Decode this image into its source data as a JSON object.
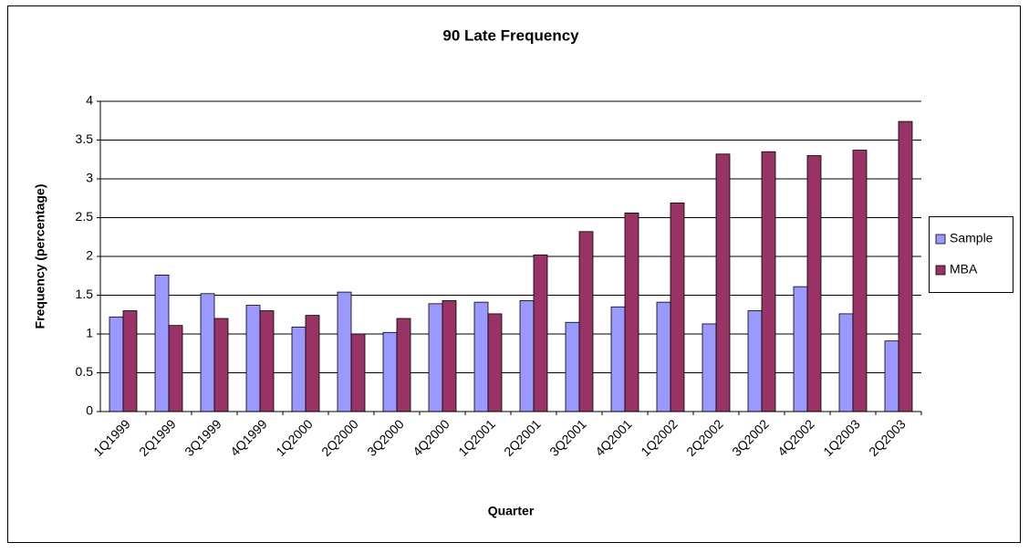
{
  "chart_data": {
    "type": "bar",
    "title": "90 Late Frequency",
    "x_label": "Quarter",
    "y_label": "Frequency (percentage)",
    "categories": [
      "1Q1999",
      "2Q1999",
      "3Q1999",
      "4Q1999",
      "1Q2000",
      "2Q2000",
      "3Q2000",
      "4Q2000",
      "1Q2001",
      "2Q2001",
      "3Q2001",
      "4Q2001",
      "1Q2002",
      "2Q2002",
      "3Q2002",
      "4Q2002",
      "1Q2003",
      "2Q2003"
    ],
    "series": [
      {
        "name": "Sample",
        "color": "#9999ff",
        "values": [
          1.22,
          1.76,
          1.52,
          1.37,
          1.09,
          1.54,
          1.02,
          1.39,
          1.41,
          1.43,
          1.15,
          1.35,
          1.41,
          1.13,
          1.3,
          1.61,
          1.26,
          0.91
        ]
      },
      {
        "name": "MBA",
        "color": "#993366",
        "values": [
          1.3,
          1.11,
          1.2,
          1.3,
          1.24,
          1.0,
          1.2,
          1.43,
          1.26,
          2.02,
          2.32,
          2.56,
          2.69,
          3.32,
          3.35,
          3.3,
          3.37,
          3.74
        ]
      }
    ],
    "ylim": [
      0,
      4
    ],
    "yticks": [
      0,
      0.5,
      1,
      1.5,
      2,
      2.5,
      3,
      3.5,
      4
    ],
    "grid": true,
    "legend": "right"
  }
}
